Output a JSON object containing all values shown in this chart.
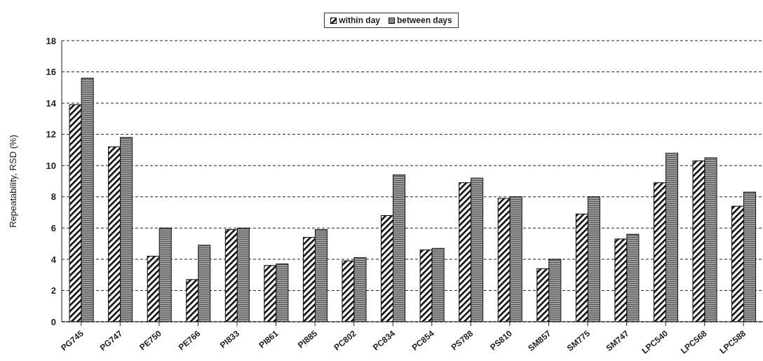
{
  "chart_data": {
    "type": "bar",
    "ylabel": "Repeatability, RSD (%)",
    "categories": [
      "PG745",
      "PG747",
      "PE750",
      "PE766",
      "PI833",
      "PI861",
      "PI885",
      "PC802",
      "PC834",
      "PC854",
      "PS788",
      "PS810",
      "SM857",
      "SM775",
      "SM747",
      "LPC540",
      "LPC568",
      "LPC588"
    ],
    "series": [
      {
        "name": "within day",
        "color": "#ffffff",
        "values": [
          13.9,
          11.2,
          4.2,
          2.7,
          5.9,
          3.6,
          5.4,
          3.9,
          6.8,
          4.6,
          8.9,
          7.9,
          3.4,
          6.9,
          5.3,
          8.9,
          10.3,
          7.4
        ]
      },
      {
        "name": "between days",
        "color": "#9a9a9a",
        "values": [
          15.6,
          11.8,
          6.0,
          4.9,
          6.0,
          3.7,
          5.9,
          4.1,
          9.4,
          4.7,
          9.2,
          8.0,
          4.0,
          8.0,
          5.6,
          10.8,
          10.5,
          8.3
        ]
      }
    ],
    "ylim": [
      0,
      18
    ],
    "yticks": [
      0,
      2,
      4,
      6,
      8,
      10,
      12,
      14,
      16,
      18
    ],
    "grid": "y",
    "legend": "top"
  }
}
